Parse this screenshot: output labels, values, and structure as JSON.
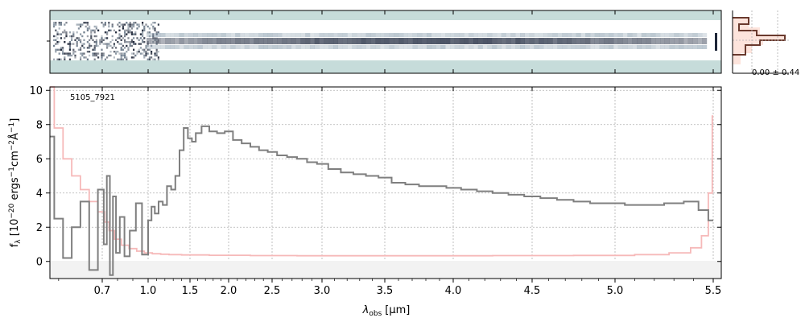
{
  "chart_data": [
    {
      "type": "heatmap",
      "panel": "2d-spectrum",
      "colormap": [
        "#c6dcda",
        "#ffffff",
        "#1e2638"
      ],
      "trace_color": "#3a4356"
    },
    {
      "type": "line",
      "panel": "1d-spectrum",
      "annotation": "5105_7921",
      "xlabel_prefix": "λ",
      "xlabel_sub": "obs",
      "xlabel_unit": "[μm]",
      "ylabel": "f_λ [10^-20 ergs^-1 cm^-2 Å^-1]",
      "ylabel_parts": [
        "f",
        "λ",
        " [10",
        "−20",
        " ergs",
        "−1",
        "cm",
        "−2",
        "Å",
        "−1",
        "]"
      ],
      "x_scale": "nonlinear (sqrt-like)",
      "x_ticks": [
        0.7,
        1.0,
        1.5,
        2.0,
        2.5,
        3.0,
        3.5,
        4.0,
        4.5,
        5.0,
        5.5
      ],
      "x_tick_labels": [
        "0.7",
        "1.0",
        "1.5",
        "2.0",
        "2.5",
        "3.0",
        "3.5",
        "4.0",
        "4.5",
        "5.0",
        "5.5"
      ],
      "y_ticks": [
        0,
        2,
        4,
        6,
        8,
        10
      ],
      "y_tick_labels": [
        "0",
        "2",
        "4",
        "6",
        "8",
        "10"
      ],
      "xlim": [
        0.58,
        5.52
      ],
      "ylim": [
        -1.0,
        10.2
      ],
      "grid": true,
      "series": [
        {
          "color": "#7f7f7f",
          "style": "steps",
          "x": [
            0.58,
            0.6,
            0.62,
            0.64,
            0.66,
            0.68,
            0.7,
            0.72,
            0.74,
            0.76,
            0.78,
            0.8,
            0.83,
            0.86,
            0.9,
            0.94,
            0.98,
            1.02,
            1.06,
            1.1,
            1.15,
            1.2,
            1.25,
            1.3,
            1.35,
            1.4,
            1.45,
            1.5,
            1.55,
            1.6,
            1.7,
            1.8,
            1.9,
            2.0,
            2.1,
            2.2,
            2.3,
            2.4,
            2.5,
            2.6,
            2.7,
            2.8,
            2.9,
            3.0,
            3.1,
            3.2,
            3.3,
            3.4,
            3.5,
            3.6,
            3.7,
            3.8,
            3.9,
            4.0,
            4.1,
            4.2,
            4.3,
            4.4,
            4.5,
            4.6,
            4.7,
            4.8,
            4.9,
            5.0,
            5.1,
            5.2,
            5.3,
            5.4,
            5.45,
            5.5
          ],
          "y": [
            7.3,
            2.5,
            0.2,
            2.0,
            3.5,
            -0.5,
            4.2,
            1.0,
            5.0,
            -0.8,
            3.8,
            0.5,
            2.6,
            0.3,
            1.8,
            3.4,
            0.4,
            2.4,
            3.2,
            2.8,
            3.5,
            3.3,
            4.4,
            4.2,
            5.0,
            6.5,
            7.8,
            7.2,
            7.0,
            7.5,
            7.9,
            7.6,
            7.5,
            7.6,
            7.1,
            6.9,
            6.7,
            6.5,
            6.4,
            6.2,
            6.1,
            6.0,
            5.8,
            5.7,
            5.4,
            5.2,
            5.1,
            5.0,
            4.9,
            4.6,
            4.5,
            4.4,
            4.4,
            4.3,
            4.2,
            4.1,
            4.0,
            3.9,
            3.8,
            3.7,
            3.6,
            3.5,
            3.4,
            3.4,
            3.3,
            3.3,
            3.4,
            3.5,
            3.0,
            2.4
          ]
        },
        {
          "color": "#f6b9b9",
          "style": "steps",
          "x": [
            0.58,
            0.6,
            0.62,
            0.64,
            0.66,
            0.68,
            0.7,
            0.73,
            0.76,
            0.8,
            0.85,
            0.9,
            0.95,
            1.0,
            1.1,
            1.2,
            1.3,
            1.5,
            2.0,
            2.5,
            3.0,
            3.5,
            4.0,
            4.5,
            5.0,
            5.2,
            5.35,
            5.42,
            5.46,
            5.49,
            5.5
          ],
          "y": [
            10.2,
            7.8,
            6.0,
            5.0,
            4.2,
            3.5,
            2.9,
            2.3,
            1.8,
            1.3,
            0.95,
            0.75,
            0.6,
            0.5,
            0.45,
            0.42,
            0.4,
            0.38,
            0.36,
            0.34,
            0.33,
            0.33,
            0.33,
            0.34,
            0.35,
            0.4,
            0.5,
            0.8,
            1.5,
            4.0,
            8.5
          ]
        }
      ]
    },
    {
      "type": "bar",
      "panel": "residual-histogram",
      "label": "0.00 ± 0.44",
      "fill_color": "#fde4dc",
      "outline_color": "#6a3a2e"
    }
  ]
}
